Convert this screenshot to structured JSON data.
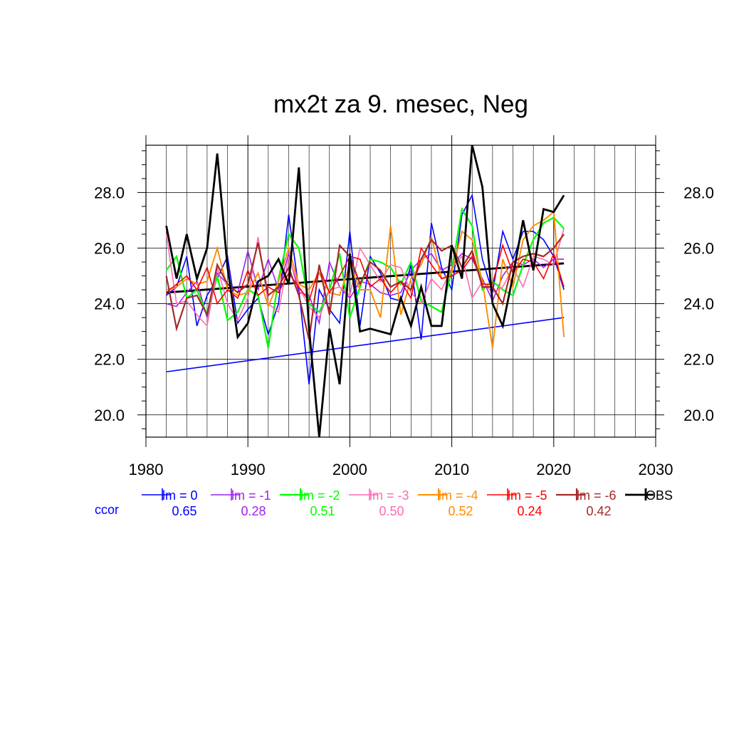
{
  "chart_data": {
    "type": "line",
    "title": "mx2t za 9. mesec, Neg",
    "xlim": [
      1980,
      2030
    ],
    "ylim": [
      19.2,
      29.7
    ],
    "x_ticks": [
      "1980",
      "1990",
      "2000",
      "2010",
      "2020",
      "2030"
    ],
    "y_ticks": [
      "20.0",
      "22.0",
      "24.0",
      "26.0",
      "28.0"
    ],
    "grid": true,
    "ccor_label": "ccor",
    "legend_placement": "bottom",
    "x": [
      1982,
      1983,
      1984,
      1985,
      1986,
      1987,
      1988,
      1989,
      1990,
      1991,
      1992,
      1993,
      1994,
      1995,
      1996,
      1997,
      1998,
      1999,
      2000,
      2001,
      2002,
      2003,
      2004,
      2005,
      2006,
      2007,
      2008,
      2009,
      2010,
      2011,
      2012,
      2013,
      2014,
      2015,
      2016,
      2017,
      2018,
      2019,
      2020,
      2021
    ],
    "series": [
      {
        "name": "lm = 0",
        "ccor": "0.65",
        "color": "#0000ff",
        "width": 1.6,
        "values": [
          24.3,
          24.6,
          25.7,
          23.2,
          24.3,
          24.9,
          25.7,
          23.3,
          23.8,
          24.2,
          22.9,
          24.0,
          27.2,
          24.5,
          21.1,
          24.5,
          23.8,
          23.3,
          26.6,
          23.2,
          25.7,
          25.1,
          24.2,
          24.1,
          25.4,
          22.7,
          26.9,
          25.3,
          24.5,
          27.2,
          27.9,
          25.6,
          24.4,
          26.6,
          25.6,
          26.6,
          26.6,
          26.3,
          25.7,
          24.5
        ]
      },
      {
        "name": "lm = -1",
        "ccor": "0.28",
        "color": "#a020f0",
        "width": 1.6,
        "values": [
          24.0,
          23.9,
          24.4,
          24.8,
          23.5,
          25.1,
          24.7,
          24.4,
          25.9,
          24.5,
          25.6,
          24.5,
          25.8,
          24.4,
          24.3,
          23.3,
          25.5,
          24.6,
          24.2,
          24.8,
          24.7,
          24.4,
          24.3,
          24.4,
          25.2,
          25.6,
          25.8,
          25.2,
          25.4,
          25.8,
          25.6,
          24.9,
          24.1,
          25.0,
          25.5,
          25.4,
          25.6,
          25.3,
          25.6,
          25.6
        ]
      },
      {
        "name": "lm = -2",
        "ccor": "0.51",
        "color": "#00ff00",
        "width": 2.2,
        "values": [
          25.2,
          25.7,
          24.2,
          24.5,
          23.6,
          25.0,
          23.4,
          23.7,
          24.5,
          24.3,
          22.4,
          24.9,
          26.5,
          26.0,
          24.0,
          23.7,
          24.5,
          25.8,
          23.5,
          24.6,
          25.6,
          25.5,
          25.3,
          24.7,
          25.5,
          24.1,
          23.9,
          23.7,
          25.2,
          27.4,
          26.8,
          24.5,
          24.8,
          24.5,
          24.3,
          25.4,
          26.3,
          26.9,
          27.1,
          26.7
        ]
      },
      {
        "name": "lm = -3",
        "ccor": "0.50",
        "color": "#ff69b4",
        "width": 1.6,
        "values": [
          26.5,
          24.0,
          24.1,
          23.6,
          23.2,
          25.3,
          24.0,
          23.4,
          24.2,
          26.4,
          24.0,
          23.7,
          25.7,
          24.6,
          23.9,
          23.5,
          24.5,
          24.6,
          24.3,
          26.0,
          25.4,
          24.8,
          25.4,
          25.3,
          24.4,
          24.0,
          24.9,
          24.5,
          25.3,
          25.7,
          24.2,
          24.8,
          24.4,
          24.6,
          25.3,
          24.6,
          25.7,
          25.6,
          25.4,
          26.7
        ]
      },
      {
        "name": "lm = -4",
        "ccor": "0.52",
        "color": "#ff8c00",
        "width": 1.9,
        "values": [
          24.5,
          24.6,
          24.9,
          24.7,
          24.8,
          26.0,
          24.5,
          24.3,
          24.4,
          25.1,
          23.9,
          24.8,
          26.0,
          24.7,
          24.5,
          25.1,
          24.4,
          24.3,
          25.4,
          24.5,
          24.5,
          23.5,
          26.8,
          23.6,
          24.9,
          25.4,
          26.4,
          24.9,
          25.1,
          26.6,
          26.3,
          24.8,
          22.4,
          25.6,
          24.6,
          26.3,
          26.8,
          27.0,
          27.3,
          22.8
        ]
      },
      {
        "name": "lm = -5",
        "ccor": "0.24",
        "color": "#ff0000",
        "width": 1.6,
        "values": [
          24.4,
          24.7,
          25.0,
          24.5,
          25.3,
          24.0,
          24.5,
          24.2,
          25.2,
          24.3,
          24.6,
          24.4,
          25.1,
          24.6,
          24.1,
          25.3,
          24.4,
          25.0,
          25.7,
          25.6,
          24.6,
          24.9,
          24.4,
          24.8,
          24.2,
          26.0,
          25.4,
          24.9,
          25.0,
          25.2,
          25.7,
          24.7,
          24.7,
          26.1,
          25.1,
          25.6,
          25.5,
          24.9,
          25.8,
          24.6
        ]
      },
      {
        "name": "lm = -6",
        "ccor": "0.42",
        "color": "#a52a2a",
        "width": 2.2,
        "values": [
          25.0,
          23.1,
          24.2,
          24.3,
          23.6,
          25.4,
          24.7,
          24.4,
          24.7,
          26.2,
          24.3,
          24.6,
          25.3,
          24.3,
          22.7,
          25.4,
          23.6,
          26.1,
          25.7,
          24.7,
          25.5,
          25.2,
          24.6,
          24.8,
          24.5,
          25.6,
          26.3,
          25.9,
          26.1,
          25.3,
          25.9,
          24.6,
          24.6,
          24.0,
          25.5,
          25.7,
          25.8,
          25.7,
          26.0,
          26.5
        ]
      },
      {
        "name": "OBS",
        "ccor": "",
        "color": "#000000",
        "width": 2.8,
        "values": [
          26.8,
          24.9,
          26.5,
          24.9,
          26.0,
          29.4,
          25.3,
          22.8,
          23.3,
          24.8,
          25.0,
          25.6,
          24.7,
          28.9,
          23.1,
          19.2,
          23.1,
          21.1,
          25.8,
          23.0,
          23.1,
          23.0,
          22.9,
          24.2,
          23.2,
          24.6,
          23.2,
          23.2,
          26.1,
          24.9,
          29.7,
          28.2,
          24.0,
          23.2,
          25.0,
          27.0,
          25.2,
          27.4,
          27.3,
          27.9
        ]
      }
    ],
    "trend_lines": [
      {
        "name": "lm = 0 trend",
        "color": "#0000ff",
        "width": 1.6,
        "x": [
          1982,
          2021
        ],
        "y": [
          21.55,
          23.5
        ]
      },
      {
        "name": "OBS trend",
        "color": "#000000",
        "width": 2.8,
        "x": [
          1982,
          2021
        ],
        "y": [
          24.4,
          25.45
        ]
      }
    ]
  }
}
